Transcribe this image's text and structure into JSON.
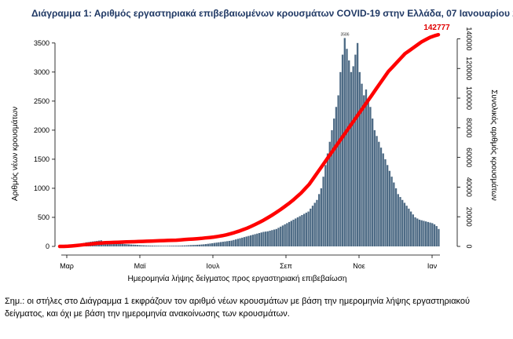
{
  "chart_data": {
    "type": "bar",
    "title": "Διάγραμμα 1: Αριθμός εργαστηριακά επιβεβαιωμένων κρουσμάτων COVID-19 στην Ελλάδα, 07 Ιανουαρίου 2021",
    "xlabel": "Ημερομηνία λήψης δείγματος προς εργαστηριακή επιβεβαίωση",
    "ylabel": "Αριθμός νέων κρουσμάτων",
    "ylabel_right": "Συνολικός αριθμός κρουσμάτων",
    "x_ticks": [
      "Μαρ",
      "Μαϊ",
      "Ιουλ",
      "Σεπ",
      "Νοε",
      "Ιαν"
    ],
    "ylim": [
      0,
      3700
    ],
    "y_ticks": [
      0,
      500,
      1000,
      1500,
      2000,
      2500,
      3000,
      3500
    ],
    "ylim_right": [
      0,
      145000
    ],
    "y_ticks_right": [
      0,
      20000,
      40000,
      60000,
      80000,
      100000,
      120000,
      140000
    ],
    "start_date": "2020-02-26",
    "series": [
      {
        "name": "",
        "kind": "bar",
        "color": "#4e6b85",
        "values": [
          3,
          5,
          8,
          12,
          18,
          25,
          30,
          35,
          40,
          45,
          55,
          60,
          70,
          75,
          80,
          85,
          90,
          95,
          100,
          105,
          90,
          85,
          80,
          75,
          70,
          65,
          60,
          55,
          50,
          45,
          40,
          38,
          35,
          32,
          30,
          28,
          25,
          22,
          20,
          18,
          16,
          15,
          14,
          13,
          12,
          12,
          11,
          10,
          10,
          10,
          10,
          11,
          12,
          12,
          12,
          13,
          14,
          15,
          16,
          18,
          20,
          22,
          24,
          26,
          28,
          30,
          33,
          36,
          40,
          45,
          50,
          55,
          60,
          65,
          70,
          75,
          80,
          85,
          90,
          95,
          100,
          110,
          120,
          130,
          140,
          150,
          160,
          170,
          180,
          190,
          200,
          210,
          220,
          230,
          240,
          250,
          255,
          260,
          270,
          280,
          290,
          300,
          320,
          340,
          360,
          380,
          400,
          420,
          440,
          460,
          480,
          500,
          520,
          540,
          560,
          580,
          600,
          650,
          700,
          750,
          800,
          900,
          1000,
          1200,
          1400,
          1600,
          1800,
          2000,
          2200,
          2400,
          2600,
          3000,
          3300,
          3586,
          3400,
          3200,
          3000,
          3100,
          3300,
          3500,
          3000,
          2800,
          2600,
          2700,
          2500,
          2400,
          2200,
          2000,
          1900,
          1800,
          1700,
          1600,
          1500,
          1400,
          1300,
          1200,
          1100,
          1000,
          900,
          850,
          800,
          750,
          700,
          650,
          600,
          550,
          500,
          480,
          460,
          450,
          440,
          430,
          420,
          410,
          400,
          380,
          350,
          300
        ]
      },
      {
        "name": "",
        "kind": "line",
        "color": "#ff0000",
        "values": [
          5,
          20,
          100,
          300,
          600,
          900,
          1200,
          1500,
          1800,
          2100,
          2300,
          2500,
          2600,
          2700,
          2800,
          2900,
          3000,
          3100,
          3200,
          3300,
          3400,
          3500,
          3600,
          3700,
          3800,
          3900,
          4000,
          4100,
          4200,
          4400,
          4600,
          4800,
          5000,
          5200,
          5400,
          5700,
          6000,
          6300,
          6700,
          7200,
          7800,
          8500,
          9300,
          10200,
          11200,
          12300,
          13500,
          14800,
          16200,
          17700,
          19300,
          21000,
          22800,
          24700,
          26700,
          28800,
          31000,
          33500,
          36000,
          39000,
          42000,
          46000,
          50000,
          54000,
          58000,
          62000,
          66000,
          70000,
          74000,
          78000,
          82000,
          86000,
          90000,
          94000,
          98000,
          102000,
          106000,
          110000,
          114000,
          118000,
          121000,
          124000,
          127000,
          130000,
          132000,
          134000,
          136000,
          138000,
          139500,
          141000,
          142000,
          142777
        ]
      }
    ],
    "data_labels": [
      {
        "text": "3586",
        "type": "max_bar"
      },
      {
        "text": "142777",
        "type": "end_line"
      }
    ]
  },
  "note": "Σημ.: οι στήλες στο Διάγραμμα 1 εκφράζουν τον αριθμό νέων κρουσμάτων με βάση την ημερομηνία λήψης εργαστηριακού δείγματος, και όχι με βάση την ημερομηνία ανακοίνωσης των κρουσμάτων."
}
